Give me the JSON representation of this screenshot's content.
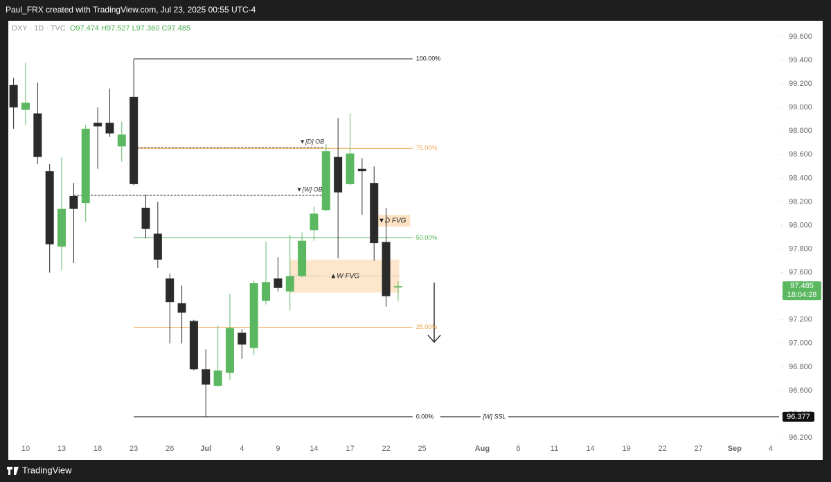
{
  "chart_data": {
    "type": "candlestick",
    "header": "Paul_FRX created with TradingView.com, Jul 23, 2025 00:55 UTC-4",
    "footer": "TradingView",
    "legend": {
      "symbol": "DXY · 1D · TVC",
      "items": [
        {
          "key": "O",
          "value": "97.474"
        },
        {
          "key": "H",
          "value": "97.527"
        },
        {
          "key": "L",
          "value": "97.360"
        },
        {
          "key": "C",
          "value": "97.485"
        }
      ]
    },
    "up_color": "#5cb860",
    "down_color": "#2b2b2b",
    "candles": [
      {
        "open": 99.19,
        "high": 99.25,
        "low": 98.82,
        "close": 99.0
      },
      {
        "open": 98.98,
        "high": 99.38,
        "low": 98.85,
        "close": 99.04
      },
      {
        "open": 98.95,
        "high": 99.21,
        "low": 98.52,
        "close": 98.58
      },
      {
        "open": 98.46,
        "high": 98.52,
        "low": 97.6,
        "close": 97.84
      },
      {
        "open": 97.82,
        "high": 98.58,
        "low": 97.62,
        "close": 98.14
      },
      {
        "open": 98.25,
        "high": 98.36,
        "low": 97.68,
        "close": 98.14
      },
      {
        "open": 98.19,
        "high": 98.85,
        "low": 98.03,
        "close": 98.82
      },
      {
        "open": 98.87,
        "high": 99.0,
        "low": 98.48,
        "close": 98.84
      },
      {
        "open": 98.87,
        "high": 99.16,
        "low": 98.75,
        "close": 98.78
      },
      {
        "open": 98.67,
        "high": 98.88,
        "low": 98.54,
        "close": 98.77
      },
      {
        "open": 99.09,
        "high": 99.412,
        "low": 98.34,
        "close": 98.35
      },
      {
        "open": 98.15,
        "high": 98.26,
        "low": 97.89,
        "close": 97.97
      },
      {
        "open": 97.93,
        "high": 98.2,
        "low": 97.64,
        "close": 97.71
      },
      {
        "open": 97.55,
        "high": 97.59,
        "low": 97.0,
        "close": 97.35
      },
      {
        "open": 97.34,
        "high": 97.49,
        "low": 97.0,
        "close": 97.26
      },
      {
        "open": 97.19,
        "high": 97.2,
        "low": 96.77,
        "close": 96.78
      },
      {
        "open": 96.78,
        "high": 96.95,
        "low": 96.377,
        "close": 96.65
      },
      {
        "open": 96.64,
        "high": 97.15,
        "low": 96.63,
        "close": 96.77
      },
      {
        "open": 96.75,
        "high": 97.42,
        "low": 96.69,
        "close": 97.13
      },
      {
        "open": 97.09,
        "high": 97.12,
        "low": 96.87,
        "close": 96.99
      },
      {
        "open": 96.96,
        "high": 97.53,
        "low": 96.9,
        "close": 97.51
      },
      {
        "open": 97.36,
        "high": 97.86,
        "low": 97.33,
        "close": 97.52
      },
      {
        "open": 97.55,
        "high": 97.73,
        "low": 97.44,
        "close": 97.47
      },
      {
        "open": 97.44,
        "high": 97.92,
        "low": 97.28,
        "close": 97.57
      },
      {
        "open": 97.57,
        "high": 97.94,
        "low": 97.56,
        "close": 97.87
      },
      {
        "open": 97.96,
        "high": 98.16,
        "low": 97.87,
        "close": 98.1
      },
      {
        "open": 98.13,
        "high": 98.69,
        "low": 98.12,
        "close": 98.63
      },
      {
        "open": 98.58,
        "high": 98.91,
        "low": 97.72,
        "close": 98.28
      },
      {
        "open": 98.35,
        "high": 98.95,
        "low": 98.34,
        "close": 98.61
      },
      {
        "open": 98.48,
        "high": 98.57,
        "low": 98.09,
        "close": 98.46
      },
      {
        "open": 98.36,
        "high": 98.5,
        "low": 97.7,
        "close": 97.85
      },
      {
        "open": 97.86,
        "high": 98.15,
        "low": 97.31,
        "close": 97.4
      },
      {
        "open": 97.474,
        "high": 97.527,
        "low": 97.36,
        "close": 97.485
      }
    ],
    "xlim": [
      -0.44,
      63.7
    ],
    "xticks": [
      {
        "value": 1,
        "label": "10"
      },
      {
        "value": 4,
        "label": "13"
      },
      {
        "value": 7,
        "label": "18"
      },
      {
        "value": 10,
        "label": "23"
      },
      {
        "value": 13,
        "label": "26"
      },
      {
        "value": 16,
        "label": "Jul"
      },
      {
        "value": 19,
        "label": "4"
      },
      {
        "value": 22,
        "label": "9"
      },
      {
        "value": 25,
        "label": "14"
      },
      {
        "value": 28,
        "label": "17"
      },
      {
        "value": 31,
        "label": "22"
      },
      {
        "value": 34,
        "label": "25"
      },
      {
        "value": 39,
        "label": "Aug"
      },
      {
        "value": 42,
        "label": "6"
      },
      {
        "value": 45,
        "label": "11"
      },
      {
        "value": 48,
        "label": "14"
      },
      {
        "value": 51,
        "label": "19"
      },
      {
        "value": 54,
        "label": "22"
      },
      {
        "value": 57,
        "label": "27"
      },
      {
        "value": 60,
        "label": "Sep"
      },
      {
        "value": 63,
        "label": "4"
      }
    ],
    "ylim": [
      96.036,
      99.735
    ],
    "yticks": [
      {
        "value": 96.2,
        "label": "96.200"
      },
      {
        "value": 96.4,
        "label": "96.400"
      },
      {
        "value": 96.6,
        "label": "96.600"
      },
      {
        "value": 96.8,
        "label": "96.800"
      },
      {
        "value": 97.0,
        "label": "97.000"
      },
      {
        "value": 97.2,
        "label": "97.200"
      },
      {
        "value": 97.4,
        "label": "97.400"
      },
      {
        "value": 97.6,
        "label": "97.600"
      },
      {
        "value": 97.8,
        "label": "97.800"
      },
      {
        "value": 98.0,
        "label": "98.000"
      },
      {
        "value": 98.2,
        "label": "98.200"
      },
      {
        "value": 98.4,
        "label": "98.400"
      },
      {
        "value": 98.6,
        "label": "98.600"
      },
      {
        "value": 98.8,
        "label": "98.800"
      },
      {
        "value": 99.0,
        "label": "99.000"
      },
      {
        "value": 99.2,
        "label": "99.200"
      },
      {
        "value": 99.4,
        "label": "99.400"
      },
      {
        "value": 99.6,
        "label": "99.600"
      }
    ],
    "fib": {
      "start": 10,
      "end": 33.2,
      "levels": [
        {
          "percent": 100,
          "label": "100.00%",
          "price": 99.412,
          "color": "#222222"
        },
        {
          "percent": 75,
          "label": "75.00%",
          "price": 98.653,
          "color": "#f0a04b"
        },
        {
          "percent": 50,
          "label": "50.00%",
          "price": 97.895,
          "color": "#4caf50"
        },
        {
          "percent": 25,
          "label": "25.00%",
          "price": 97.136,
          "color": "#f0a04b"
        },
        {
          "percent": 0,
          "label": "0.00%",
          "price": 96.377,
          "color": "#222222"
        }
      ]
    },
    "levels": [
      {
        "label": "▼[D] OB",
        "price": 98.66,
        "start": 10,
        "end": 25.85
      },
      {
        "label": "▼[W] OB",
        "price": 98.255,
        "start": 5,
        "end": 25.7
      }
    ],
    "boxes": [
      {
        "label": "▼D FVG",
        "top": 98.09,
        "bottom": 97.99,
        "start": 30,
        "end": 33,
        "color": "#fbe3c4"
      },
      {
        "label": "▲W FVG",
        "top": 97.71,
        "bottom": 97.43,
        "start": 23,
        "end": 32.1,
        "color": "#fde6cc"
      }
    ],
    "ssl": {
      "label": "[W] SSL",
      "price": 96.377,
      "start": 33.2,
      "price_label": "96.377"
    },
    "last_price": {
      "value": 97.485,
      "label": "97.485",
      "countdown": "18:04:28"
    }
  }
}
